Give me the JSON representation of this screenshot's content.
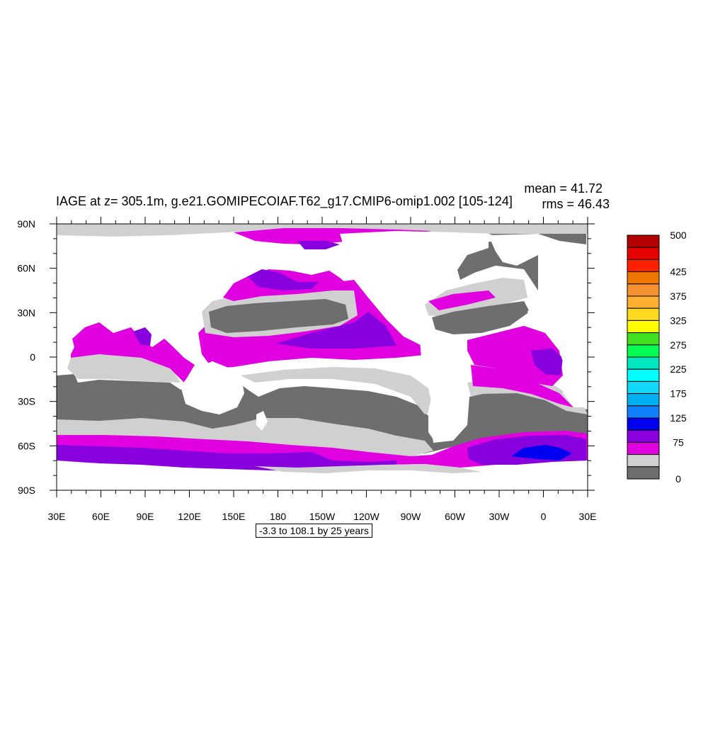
{
  "figure": {
    "title": "IAGE at z= 305.1m, g.e21.GOMIPECOIAF.T62_g17.CMIP6-omip1.002 [105-124]",
    "stats": {
      "mean": "mean = 41.72",
      "rms": "rms = 46.43"
    },
    "info_box": "-3.3 to 108.1 by 25 years"
  },
  "map": {
    "projection": "cylindrical equidistant",
    "longitude_range": [
      "30E",
      "30E"
    ],
    "latitude_range": [
      "90S",
      "90N"
    ],
    "x_tick_labels": [
      "30E",
      "60E",
      "90E",
      "120E",
      "150E",
      "180",
      "150W",
      "120W",
      "90W",
      "60W",
      "30W",
      "0",
      "30E"
    ],
    "y_tick_labels": [
      "90N",
      "60N",
      "30N",
      "0",
      "30S",
      "60S",
      "90S"
    ],
    "land_color": "#ffffff",
    "variable": "IAGE",
    "units": "years"
  },
  "colorbar": {
    "orientation": "vertical",
    "labels": [
      "500",
      "425",
      "375",
      "325",
      "275",
      "225",
      "175",
      "125",
      "75",
      "0"
    ],
    "colors": [
      "#b30000",
      "#e60000",
      "#ff2000",
      "#f07800",
      "#f59030",
      "#ffb030",
      "#ffd820",
      "#ffff00",
      "#40e020",
      "#00ff50",
      "#00e8c0",
      "#00ffff",
      "#10d8f8",
      "#00b0f0",
      "#1080ff",
      "#0000f0",
      "#8800dd",
      "#e000e0",
      "#d0d0d0",
      "#6e6e6e"
    ]
  },
  "legend_colors": {
    "deep_gray": "#6e6e6e",
    "light_gray": "#d0d0d0",
    "magenta": "#e000e0",
    "violet": "#8800dd",
    "blue": "#0000f0"
  }
}
